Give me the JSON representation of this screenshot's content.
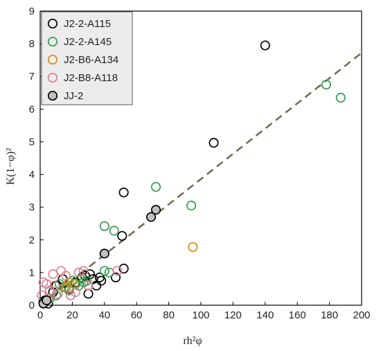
{
  "chart_data": {
    "type": "scatter",
    "title": "",
    "xlabel": "rh²φ",
    "ylabel": "K(1−φ)²",
    "xlim": [
      0,
      200
    ],
    "ylim": [
      0,
      9
    ],
    "x_ticks": [
      "0",
      "20",
      "40",
      "60",
      "80",
      "100",
      "120",
      "140",
      "160",
      "180",
      "200"
    ],
    "y_ticks": [
      "0",
      "1",
      "2",
      "3",
      "4",
      "5",
      "6",
      "7",
      "8",
      "9"
    ],
    "grid": false,
    "legend_position": "top-left",
    "series": [
      {
        "name": "J2-2-A115",
        "color": "#000000",
        "fill": "none",
        "points": [
          [
            2,
            0.1
          ],
          [
            3,
            0.15
          ],
          [
            5,
            0.05
          ],
          [
            8,
            0.4
          ],
          [
            10,
            0.6
          ],
          [
            14,
            0.8
          ],
          [
            18,
            0.5
          ],
          [
            22,
            0.7
          ],
          [
            26,
            0.85
          ],
          [
            28,
            0.9
          ],
          [
            30,
            0.35
          ],
          [
            31,
            0.95
          ],
          [
            33,
            0.8
          ],
          [
            35,
            0.6
          ],
          [
            37,
            0.85
          ],
          [
            38,
            0.75
          ],
          [
            47,
            0.85
          ],
          [
            51,
            2.12
          ],
          [
            52,
            1.12
          ],
          [
            52,
            3.45
          ],
          [
            108,
            4.97
          ],
          [
            140,
            7.95
          ]
        ]
      },
      {
        "name": "J2-2-A145",
        "color": "#2e9e4e",
        "fill": "none",
        "points": [
          [
            6,
            0.2
          ],
          [
            10,
            0.3
          ],
          [
            12,
            0.65
          ],
          [
            15,
            0.55
          ],
          [
            18,
            0.45
          ],
          [
            20,
            0.75
          ],
          [
            22,
            0.65
          ],
          [
            24,
            0.6
          ],
          [
            25,
            0.8
          ],
          [
            27,
            0.7
          ],
          [
            29,
            0.75
          ],
          [
            40,
            1.05
          ],
          [
            43,
            1.0
          ],
          [
            40,
            2.42
          ],
          [
            46,
            2.28
          ],
          [
            72,
            3.62
          ],
          [
            94,
            3.05
          ],
          [
            178,
            6.75
          ],
          [
            187,
            6.35
          ]
        ]
      },
      {
        "name": "J2-B6-A134",
        "color": "#d48a16",
        "fill": "none",
        "points": [
          [
            16,
            0.55
          ],
          [
            18,
            0.7
          ],
          [
            21,
            0.65
          ],
          [
            95,
            1.78
          ]
        ]
      },
      {
        "name": "J2-B8-A118",
        "color": "#d9828e",
        "fill": "none",
        "points": [
          [
            1,
            0.3
          ],
          [
            2,
            0.7
          ],
          [
            4,
            0.65
          ],
          [
            5,
            0.2
          ],
          [
            6,
            0.45
          ],
          [
            8,
            0.95
          ],
          [
            9,
            0.6
          ],
          [
            11,
            0.35
          ],
          [
            13,
            1.05
          ],
          [
            16,
            0.9
          ],
          [
            19,
            0.3
          ],
          [
            22,
            0.4
          ],
          [
            24,
            1.0
          ],
          [
            27,
            1.05
          ],
          [
            30,
            0.6
          ],
          [
            48,
            1.05
          ]
        ]
      },
      {
        "name": "JJ-2",
        "color": "#000000",
        "fill": "#c0c0c0",
        "points": [
          [
            2,
            0.05
          ],
          [
            4,
            0.15
          ],
          [
            40,
            1.58
          ],
          [
            69,
            2.7
          ],
          [
            72,
            2.92
          ]
        ]
      }
    ],
    "trendline": {
      "from": [
        0,
        0
      ],
      "to": [
        200,
        7.72
      ],
      "color": "#7b6852",
      "dash": true
    }
  }
}
